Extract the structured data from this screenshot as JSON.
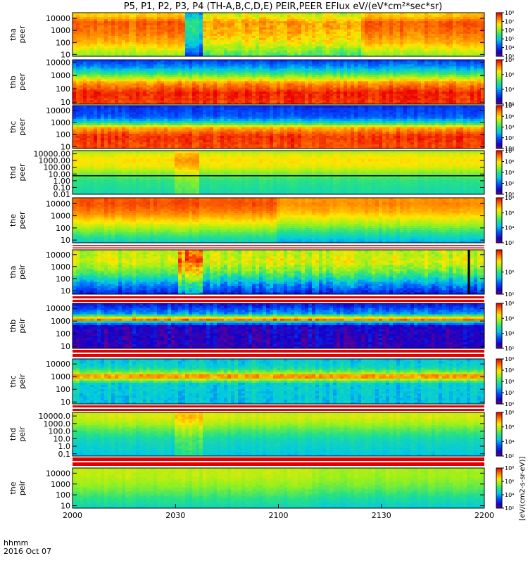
{
  "figure": {
    "title": "P5, P1, P2, P3, P4 (TH-A,B,C,D,E) PEIR,PEER EFlux eV/(eV*cm²*sec*sr)",
    "time_label": "hhmm",
    "date_label": "2016 Oct 07",
    "colorbar_unit_label": "[eV/(cm2-s-sr-eV)]"
  },
  "chart_data": [
    {
      "type": "heatmap",
      "probe": "tha",
      "species": "peer",
      "ylabel": [
        "tha",
        "peer"
      ],
      "y_scale": "log",
      "ylim": [
        7,
        30000
      ],
      "y_ticks": [
        {
          "v": 10,
          "label": "10"
        },
        {
          "v": 100,
          "label": "100"
        },
        {
          "v": 1000,
          "label": "1000"
        },
        {
          "v": 10000,
          "label": "10000"
        }
      ],
      "colorbar": {
        "scale": "log",
        "range": [
          1000,
          100000000
        ],
        "ticks": [
          {
            "v": 1000,
            "label": "10³"
          },
          {
            "v": 10000,
            "label": "10⁴"
          },
          {
            "v": 100000,
            "label": "10⁵"
          },
          {
            "v": 1000000,
            "label": "10⁶"
          },
          {
            "v": 10000000,
            "label": "10⁷"
          },
          {
            "v": 100000000,
            "label": "10⁸"
          }
        ]
      },
      "profile": [
        {
          "e": 8,
          "v": 6.0
        },
        {
          "e": 100,
          "v": 7.0
        },
        {
          "e": 1000,
          "v": 7.4
        },
        {
          "e": 5000,
          "v": 7.5
        },
        {
          "e": 20000,
          "v": 6.8
        }
      ],
      "features": [
        {
          "t": [
            2033,
            2037
          ],
          "dv": -2.0,
          "noise": 0.4
        },
        {
          "t": [
            2037,
            2124
          ],
          "dv": -0.4,
          "noise": 0.45
        },
        {
          "t": [
            2174,
            2200
          ],
          "dv": -0.2,
          "noise": 0.3
        }
      ],
      "noise": 0.25
    },
    {
      "type": "heatmap",
      "probe": "thb",
      "species": "peer",
      "ylabel": [
        "thb",
        "peer"
      ],
      "y_scale": "log",
      "ylim": [
        7,
        15000
      ],
      "y_ticks": [
        {
          "v": 10,
          "label": "10"
        },
        {
          "v": 100,
          "label": "100"
        },
        {
          "v": 1000,
          "label": "1000"
        },
        {
          "v": 10000,
          "label": "10000"
        }
      ],
      "colorbar": {
        "scale": "log",
        "range": [
          100,
          100000000
        ],
        "ticks": [
          {
            "v": 100,
            "label": "10²"
          },
          {
            "v": 10000,
            "label": "10⁴"
          },
          {
            "v": 1000000,
            "label": "10⁶"
          },
          {
            "v": 100000000,
            "label": "10⁸"
          }
        ]
      },
      "profile": [
        {
          "e": 8,
          "v": 7.6
        },
        {
          "e": 50,
          "v": 7.8
        },
        {
          "e": 300,
          "v": 7.0
        },
        {
          "e": 1500,
          "v": 5.0
        },
        {
          "e": 4000,
          "v": 4.0
        },
        {
          "e": 15000,
          "v": 3.2
        }
      ],
      "features": [],
      "noise": 0.35
    },
    {
      "type": "heatmap",
      "probe": "thc",
      "species": "peer",
      "ylabel": [
        "thc",
        "peer"
      ],
      "y_scale": "log",
      "ylim": [
        7,
        25000
      ],
      "y_ticks": [
        {
          "v": 10,
          "label": "10"
        },
        {
          "v": 100,
          "label": "100"
        },
        {
          "v": 1000,
          "label": "1000"
        },
        {
          "v": 10000,
          "label": "10000"
        }
      ],
      "colorbar": {
        "scale": "log",
        "range": [
          1,
          100000000
        ],
        "ticks": [
          {
            "v": 1,
            "label": "10⁰"
          },
          {
            "v": 100,
            "label": "10²"
          },
          {
            "v": 10000,
            "label": "10⁴"
          },
          {
            "v": 1000000,
            "label": "10⁶"
          },
          {
            "v": 100000000,
            "label": "10⁸"
          }
        ]
      },
      "profile": [
        {
          "e": 8,
          "v": 7.4
        },
        {
          "e": 80,
          "v": 7.6
        },
        {
          "e": 400,
          "v": 6.5
        },
        {
          "e": 1000,
          "v": 3.5
        },
        {
          "e": 3000,
          "v": 2.0
        },
        {
          "e": 25000,
          "v": 1.5
        }
      ],
      "features": [],
      "noise": 0.45
    },
    {
      "type": "heatmap",
      "probe": "thd",
      "species": "peer",
      "ylabel": [
        "thd",
        "peer"
      ],
      "y_scale": "log",
      "ylim": [
        0.01,
        30000
      ],
      "y_ticks": [
        {
          "v": 0.01,
          "label": "0.01"
        },
        {
          "v": 0.1,
          "label": "0.10"
        },
        {
          "v": 1,
          "label": "1.00"
        },
        {
          "v": 10,
          "label": "10.00"
        },
        {
          "v": 100,
          "label": "100.00"
        },
        {
          "v": 1000,
          "label": "1000.00"
        },
        {
          "v": 10000,
          "label": "10000.00"
        }
      ],
      "colorbar": {
        "scale": "log",
        "range": [
          1,
          100000000
        ],
        "ticks": [
          {
            "v": 1,
            "label": "10⁰"
          },
          {
            "v": 100,
            "label": "10²"
          },
          {
            "v": 10000,
            "label": "10⁴"
          },
          {
            "v": 1000000,
            "label": "10⁶"
          },
          {
            "v": 100000000,
            "label": "10⁸"
          }
        ]
      },
      "profile": [
        {
          "e": 0.01,
          "v": 3.6
        },
        {
          "e": 1,
          "v": 4.0
        },
        {
          "e": 10,
          "v": 4.6
        },
        {
          "e": 100,
          "v": 5.6
        },
        {
          "e": 1000,
          "v": 6.0
        },
        {
          "e": 10000,
          "v": 5.6
        },
        {
          "e": 30000,
          "v": 5.0
        }
      ],
      "features": [
        {
          "t": [
            2030,
            2036
          ],
          "dv": 0.8,
          "noise": 0.3
        }
      ],
      "trace": {
        "y": 5.5,
        "color": "#000000"
      },
      "noise": 0.2
    },
    {
      "type": "heatmap",
      "probe": "the",
      "species": "peer",
      "ylabel": [
        "the",
        "peer"
      ],
      "y_scale": "log",
      "ylim": [
        6,
        30000
      ],
      "y_ticks": [
        {
          "v": 10,
          "label": "10"
        },
        {
          "v": 100,
          "label": "100"
        },
        {
          "v": 1000,
          "label": "1000"
        },
        {
          "v": 10000,
          "label": "10000"
        }
      ],
      "colorbar": {
        "scale": "log",
        "range": [
          100,
          100000000
        ],
        "ticks": [
          {
            "v": 100,
            "label": "10²"
          },
          {
            "v": 10000,
            "label": "10⁴"
          },
          {
            "v": 1000000,
            "label": "10⁶"
          },
          {
            "v": 100000000,
            "label": "10⁸"
          }
        ]
      },
      "profile": [
        {
          "e": 6,
          "v": 4.4
        },
        {
          "e": 30,
          "v": 5.2
        },
        {
          "e": 200,
          "v": 6.2
        },
        {
          "e": 2000,
          "v": 7.2
        },
        {
          "e": 10000,
          "v": 7.5
        },
        {
          "e": 30000,
          "v": 7.4
        }
      ],
      "features": [
        {
          "t": [
            2100,
            2200
          ],
          "dv": -0.4,
          "noise": 0.15
        }
      ],
      "noise": 0.2
    },
    {
      "type": "heatmap",
      "probe": "tha",
      "species": "peir",
      "ylabel": [
        "tha",
        "peir"
      ],
      "y_scale": "log",
      "ylim": [
        5,
        25000
      ],
      "y_ticks": [
        {
          "v": 10,
          "label": "10"
        },
        {
          "v": 100,
          "label": "100"
        },
        {
          "v": 1000,
          "label": "1000"
        },
        {
          "v": 10000,
          "label": "10000"
        }
      ],
      "colorbar": {
        "scale": "log",
        "range": [
          100000,
          10000000
        ],
        "ticks": [
          {
            "v": 100000,
            "label": "10⁵"
          },
          {
            "v": 1000000,
            "label": "10⁶"
          }
        ]
      },
      "profile": [
        {
          "e": 5,
          "v": 5.3
        },
        {
          "e": 30,
          "v": 5.6
        },
        {
          "e": 300,
          "v": 6.1
        },
        {
          "e": 3000,
          "v": 6.4
        },
        {
          "e": 25000,
          "v": 6.3
        }
      ],
      "features": [
        {
          "t": [
            2031,
            2037
          ],
          "dv": 0.3,
          "noise": 0.3
        },
        {
          "t": [
            2037,
            2200
          ],
          "dv": 0.0,
          "noise": 0.2
        }
      ],
      "bar": {
        "t": 2155.5,
        "color": "#000000"
      },
      "noise": 0.15
    },
    {
      "type": "heatmap",
      "probe": "thb",
      "species": "peir",
      "ylabel": [
        "thb",
        "peir"
      ],
      "y_scale": "log",
      "ylim": [
        7,
        25000
      ],
      "y_ticks": [
        {
          "v": 10,
          "label": "10"
        },
        {
          "v": 100,
          "label": "100"
        },
        {
          "v": 1000,
          "label": "1000"
        },
        {
          "v": 10000,
          "label": "10000"
        }
      ],
      "colorbar": {
        "scale": "log",
        "range": [
          100,
          100000000
        ],
        "ticks": [
          {
            "v": 100,
            "label": "10²"
          },
          {
            "v": 10000,
            "label": "10⁴"
          },
          {
            "v": 1000000,
            "label": "10⁶"
          },
          {
            "v": 100000000,
            "label": "10⁸"
          }
        ]
      },
      "profile": [
        {
          "e": 7,
          "v": 2.5
        },
        {
          "e": 400,
          "v": 2.6
        },
        {
          "e": 900,
          "v": 4.5
        },
        {
          "e": 1400,
          "v": 7.5
        },
        {
          "e": 2200,
          "v": 6.0
        },
        {
          "e": 4000,
          "v": 4.0
        },
        {
          "e": 25000,
          "v": 2.8
        }
      ],
      "features": [],
      "noise": 0.5
    },
    {
      "type": "heatmap",
      "probe": "thc",
      "species": "peir",
      "ylabel": [
        "thc",
        "peir"
      ],
      "y_scale": "log",
      "ylim": [
        7,
        25000
      ],
      "y_ticks": [
        {
          "v": 10,
          "label": "10"
        },
        {
          "v": 100,
          "label": "100"
        },
        {
          "v": 1000,
          "label": "1000"
        },
        {
          "v": 10000,
          "label": "10000"
        }
      ],
      "colorbar": {
        "scale": "log",
        "range": [
          1,
          100000000
        ],
        "ticks": [
          {
            "v": 1,
            "label": "10⁰"
          },
          {
            "v": 100,
            "label": "10²"
          },
          {
            "v": 10000,
            "label": "10⁴"
          },
          {
            "v": 1000000,
            "label": "10⁶"
          },
          {
            "v": 100000000,
            "label": "10⁸"
          }
        ]
      },
      "profile": [
        {
          "e": 7,
          "v": 3.0
        },
        {
          "e": 300,
          "v": 3.2
        },
        {
          "e": 700,
          "v": 5.5
        },
        {
          "e": 1100,
          "v": 7.4
        },
        {
          "e": 2000,
          "v": 5.0
        },
        {
          "e": 5000,
          "v": 3.5
        },
        {
          "e": 25000,
          "v": 3.0
        }
      ],
      "features": [],
      "noise": 0.55
    },
    {
      "type": "heatmap",
      "probe": "thd",
      "species": "peir",
      "ylabel": [
        "thd",
        "peir"
      ],
      "y_scale": "log",
      "ylim": [
        0.05,
        30000
      ],
      "y_ticks": [
        {
          "v": 0.1,
          "label": "0.1"
        },
        {
          "v": 1,
          "label": "1.0"
        },
        {
          "v": 10,
          "label": "10.0"
        },
        {
          "v": 100,
          "label": "100.0"
        },
        {
          "v": 1000,
          "label": "1000.0"
        },
        {
          "v": 10000,
          "label": "10000.0"
        }
      ],
      "colorbar": {
        "scale": "log",
        "range": [
          100,
          100000000
        ],
        "ticks": [
          {
            "v": 100,
            "label": "10²"
          },
          {
            "v": 10000,
            "label": "10⁴"
          },
          {
            "v": 1000000,
            "label": "10⁶"
          },
          {
            "v": 100000000,
            "label": "10⁸"
          }
        ]
      },
      "profile": [
        {
          "e": 0.05,
          "v": 4.3
        },
        {
          "e": 1,
          "v": 4.5
        },
        {
          "e": 10,
          "v": 4.7
        },
        {
          "e": 100,
          "v": 5.2
        },
        {
          "e": 1000,
          "v": 5.8
        },
        {
          "e": 10000,
          "v": 6.2
        },
        {
          "e": 30000,
          "v": 6.0
        }
      ],
      "features": [
        {
          "t": [
            2030,
            2037
          ],
          "dv": 0.6,
          "noise": 0.3
        }
      ],
      "noise": 0.18
    },
    {
      "type": "heatmap",
      "probe": "the",
      "species": "peir",
      "ylabel": [
        "the",
        "peir"
      ],
      "y_scale": "log",
      "ylim": [
        6,
        30000
      ],
      "y_ticks": [
        {
          "v": 10,
          "label": "10"
        },
        {
          "v": 100,
          "label": "100"
        },
        {
          "v": 1000,
          "label": "1000"
        },
        {
          "v": 10000,
          "label": "10000"
        }
      ],
      "colorbar": {
        "scale": "log",
        "range": [
          100,
          100000000
        ],
        "ticks": [
          {
            "v": 100,
            "label": "10²"
          },
          {
            "v": 10000,
            "label": "10⁴"
          },
          {
            "v": 1000000,
            "label": "10⁶"
          },
          {
            "v": 100000000,
            "label": "10⁸"
          }
        ]
      },
      "profile": [
        {
          "e": 6,
          "v": 4.6
        },
        {
          "e": 50,
          "v": 5.0
        },
        {
          "e": 500,
          "v": 5.6
        },
        {
          "e": 5000,
          "v": 6.0
        },
        {
          "e": 30000,
          "v": 6.0
        }
      ],
      "features": [
        {
          "t": [
            2110,
            2200
          ],
          "dv": -0.2,
          "noise": 0.15
        }
      ],
      "noise": 0.18
    }
  ],
  "x_axis": {
    "type": "time",
    "range": [
      2000,
      2200
    ],
    "ticks": [
      {
        "v": 2000,
        "label": "2000"
      },
      {
        "v": 2030,
        "label": "2030"
      },
      {
        "v": 2100,
        "label": "2100"
      },
      {
        "v": 2130,
        "label": "2130"
      },
      {
        "v": 2200,
        "label": "2200"
      }
    ]
  }
}
